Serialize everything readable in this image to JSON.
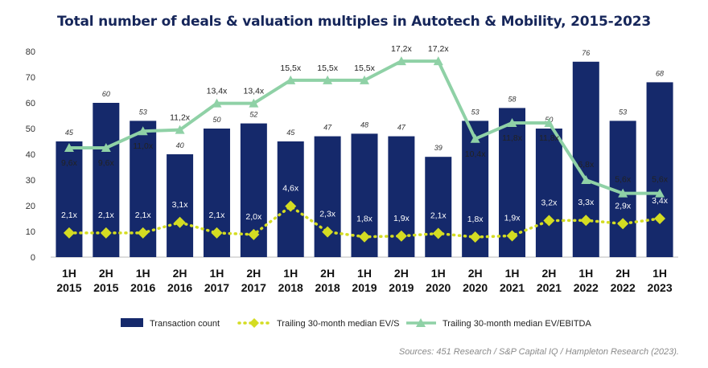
{
  "chart_data": {
    "type": "bar",
    "title": "Total number of deals & valuation multiples in Autotech & Mobility, 2015-2023",
    "xlabel": "",
    "ylabel": "",
    "ylim": [
      0,
      80
    ],
    "yticks": [
      "0",
      "10",
      "20",
      "30",
      "40",
      "50",
      "60",
      "70",
      "80"
    ],
    "categories": [
      [
        "1H",
        "2015"
      ],
      [
        "2H",
        "2015"
      ],
      [
        "1H",
        "2016"
      ],
      [
        "2H",
        "2016"
      ],
      [
        "1H",
        "2017"
      ],
      [
        "2H",
        "2017"
      ],
      [
        "1H",
        "2018"
      ],
      [
        "2H",
        "2018"
      ],
      [
        "1H",
        "2019"
      ],
      [
        "2H",
        "2019"
      ],
      [
        "1H",
        "2020"
      ],
      [
        "2H",
        "2020"
      ],
      [
        "1H",
        "2021"
      ],
      [
        "2H",
        "2021"
      ],
      [
        "1H",
        "2022"
      ],
      [
        "2H",
        "2022"
      ],
      [
        "1H",
        "2023"
      ]
    ],
    "series": [
      {
        "name": "Transaction count",
        "kind": "bar",
        "color": "#15296b",
        "values": [
          45,
          60,
          53,
          40,
          50,
          52,
          45,
          47,
          48,
          47,
          39,
          53,
          58,
          50,
          76,
          53,
          68
        ],
        "labels": [
          "45",
          "60",
          "53",
          "40",
          "50",
          "52",
          "45",
          "47",
          "48",
          "47",
          "39",
          "53",
          "58",
          "50",
          "76",
          "53",
          "68"
        ]
      },
      {
        "name": "Trailing 30-month median EV/S",
        "kind": "line-dotted-diamond",
        "color": "#d4dc22",
        "plot_values": [
          9.4,
          9.4,
          9.4,
          13.5,
          9.4,
          8.8,
          19.8,
          9.8,
          7.9,
          8.2,
          9.2,
          7.8,
          8.3,
          14.2,
          14.3,
          13.0,
          15.0
        ],
        "labels": [
          "2,1x",
          "2,1x",
          "2,1x",
          "3,1x",
          "2,1x",
          "2,0x",
          "4,6x",
          "2,3x",
          "1,8x",
          "1,9x",
          "2,1x",
          "1,8x",
          "1,9x",
          "3,2x",
          "3,3x",
          "2,9x",
          "3,4x"
        ]
      },
      {
        "name": "Trailing 30-month median EV/EBITDA",
        "kind": "line-triangle",
        "color": "#8fd1a6",
        "plot_values": [
          42.5,
          42.5,
          49.0,
          49.5,
          59.8,
          59.8,
          68.8,
          68.8,
          68.8,
          76.2,
          76.2,
          46.0,
          52.2,
          52.2,
          30.0,
          24.8,
          24.8
        ],
        "labels": [
          "9,6x",
          "9,6x",
          "11,0x",
          "11,2x",
          "13,4x",
          "13,4x",
          "15,5x",
          "15,5x",
          "15,5x",
          "17,2x",
          "17,2x",
          "10,4x",
          "11,8x",
          "11,8x",
          "6,8x",
          "5,6x",
          "5,6x"
        ]
      }
    ],
    "legend_position": "bottom",
    "grid": false
  },
  "source": "Sources: 451 Research / S&P Capital IQ / Hampleton Research (2023)."
}
